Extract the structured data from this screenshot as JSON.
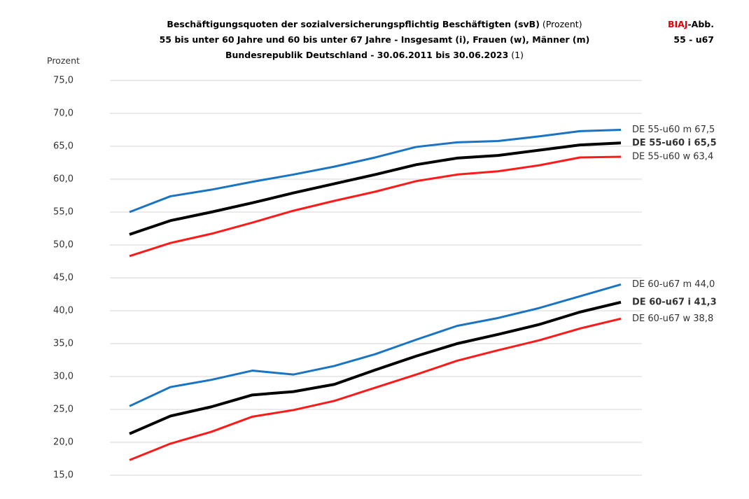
{
  "chart_data": {
    "type": "line",
    "title": "Beschäftigungsquoten der sozialversicherungspflichtig Beschäftigten (svB)",
    "title_note": "(Prozent)",
    "subtitle": "55 bis unter 60 Jahre und 60 bis unter 67 Jahre - Insgesamt (i), Frauen (w), Männer (m)",
    "subtitle2": "Bundesrepublik Deutschland - 30.06.2011 bis 30.06.2023",
    "subtitle2_note": "(1)",
    "source_brand": "BIAJ",
    "source_suffix": "-Abb.",
    "figure_id": "55 - u67",
    "y_label": "Prozent",
    "categories": [
      null,
      null,
      null,
      null,
      null,
      null,
      null,
      null,
      null,
      null,
      null,
      null,
      null
    ],
    "ylim": [
      15,
      75
    ],
    "yticks": [
      {
        "value": 15,
        "label": "15,0"
      },
      {
        "value": 20,
        "label": "20,0"
      },
      {
        "value": 25,
        "label": "25,0"
      },
      {
        "value": 30,
        "label": "30,0"
      },
      {
        "value": 35,
        "label": "35,0"
      },
      {
        "value": 40,
        "label": "40,0"
      },
      {
        "value": 45,
        "label": "45,0"
      },
      {
        "value": 50,
        "label": "50,0"
      },
      {
        "value": 55,
        "label": "55,0"
      },
      {
        "value": 60,
        "label": "60,0"
      },
      {
        "value": 65,
        "label": "65,0"
      },
      {
        "value": 70,
        "label": "70,0"
      },
      {
        "value": 75,
        "label": "75,0"
      }
    ],
    "grid": true,
    "series": [
      {
        "name": "DE 55-u60 m 67,5",
        "color": "#1a74c4",
        "bold": false,
        "values": [
          55.0,
          57.4,
          58.4,
          59.6,
          60.7,
          61.9,
          63.3,
          64.9,
          65.6,
          65.8,
          66.5,
          67.3,
          67.5
        ]
      },
      {
        "name": "DE 55-u60 i 65,5",
        "color": "#000000",
        "bold": true,
        "values": [
          51.6,
          53.7,
          55.0,
          56.4,
          57.9,
          59.3,
          60.7,
          62.2,
          63.2,
          63.6,
          64.4,
          65.2,
          65.5
        ]
      },
      {
        "name": "DE 55-u60 w 63,4",
        "color": "#ff1a1a",
        "bold": false,
        "values": [
          48.3,
          50.3,
          51.7,
          53.4,
          55.2,
          56.7,
          58.1,
          59.7,
          60.7,
          61.2,
          62.1,
          63.3,
          63.4
        ]
      },
      {
        "name": "DE 60-u67 m 44,0",
        "color": "#1a74c4",
        "bold": false,
        "values": [
          25.5,
          28.4,
          29.5,
          30.9,
          30.3,
          31.6,
          33.4,
          35.6,
          37.7,
          38.9,
          40.4,
          42.2,
          44.0
        ]
      },
      {
        "name": "DE 60-u67 i 41,3",
        "color": "#000000",
        "bold": true,
        "values": [
          21.3,
          24.0,
          25.4,
          27.2,
          27.7,
          28.8,
          31.0,
          33.1,
          35.0,
          36.4,
          37.9,
          39.8,
          41.3
        ]
      },
      {
        "name": "DE 60-u67 w 38,8",
        "color": "#ff1a1a",
        "bold": false,
        "values": [
          17.3,
          19.8,
          21.6,
          23.9,
          24.9,
          26.3,
          28.3,
          30.3,
          32.4,
          34.0,
          35.5,
          37.3,
          38.8
        ]
      }
    ]
  }
}
